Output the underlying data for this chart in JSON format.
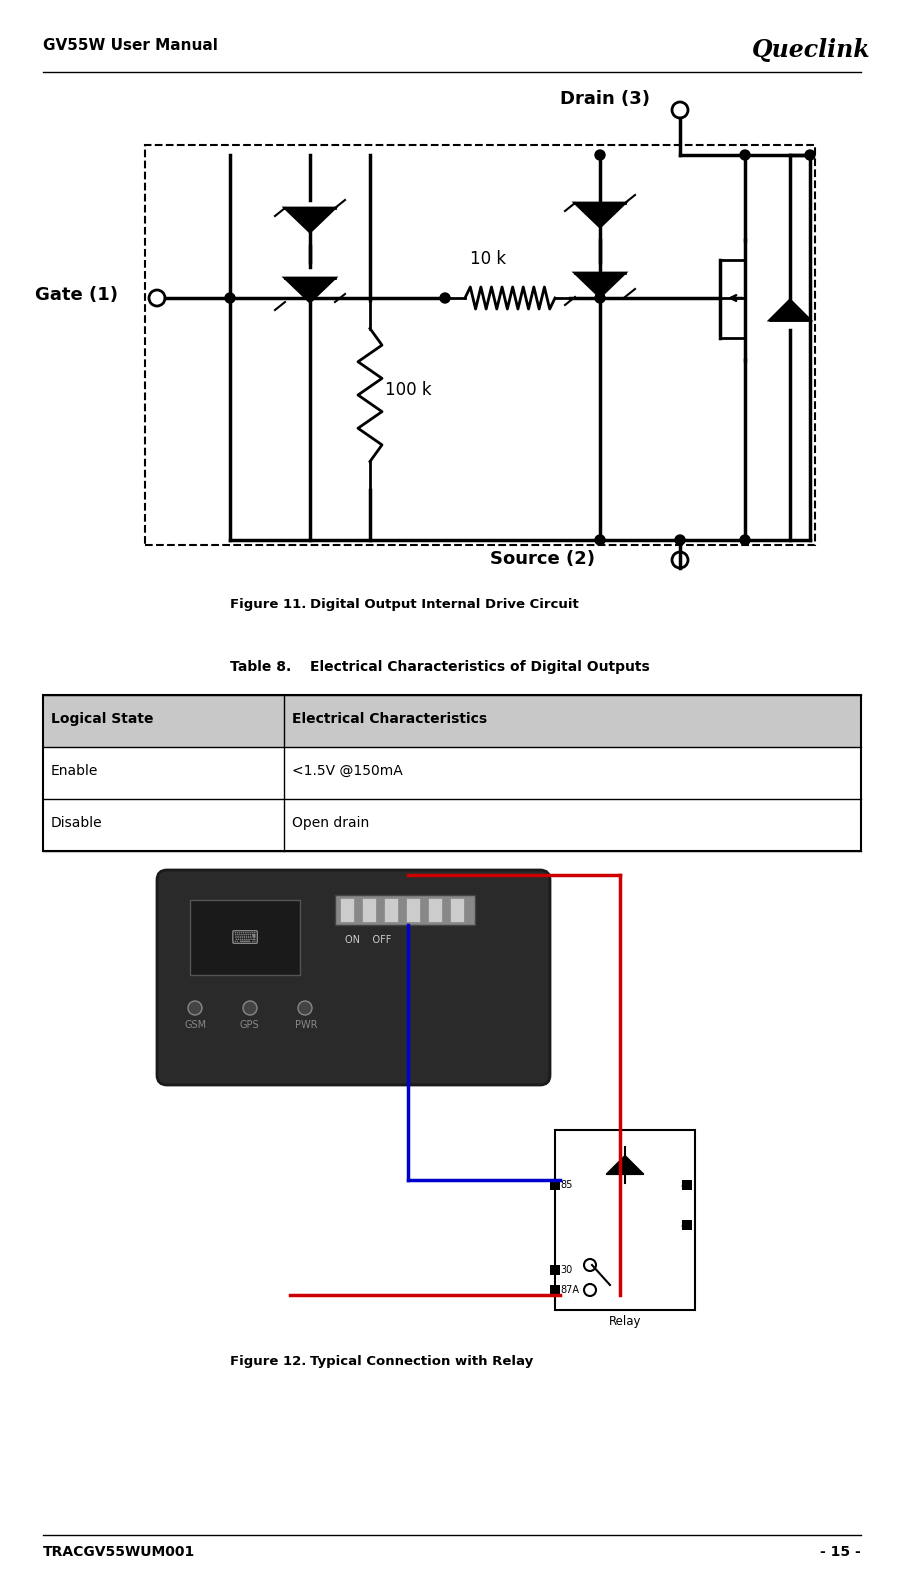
{
  "page_width": 9.04,
  "page_height": 15.83,
  "bg_color": "#ffffff",
  "header_title": "GV55W User Manual",
  "header_logo_text": "Queclink",
  "footer_left": "TRACGV55WUM001",
  "footer_right": "- 15 -",
  "fig11_caption_bold": "Figure 11.",
  "fig11_caption_text": "        Digital Output Internal Drive Circuit",
  "table_title_bold": "Table 8.",
  "table_title_text": "   Electrical Characteristics of Digital Outputs",
  "table_header": [
    "Logical State",
    "Electrical Characteristics"
  ],
  "table_rows": [
    [
      "Enable",
      "<1.5V @150mA"
    ],
    [
      "Disable",
      "Open drain"
    ]
  ],
  "table_header_bg": "#c8c8c8",
  "fig12_caption_bold": "Figure 12.",
  "fig12_caption_text": "        Typical Connection with Relay",
  "header_title_fontsize": 11,
  "caption_fontsize": 9.5,
  "table_fontsize": 10,
  "footer_fontsize": 10
}
